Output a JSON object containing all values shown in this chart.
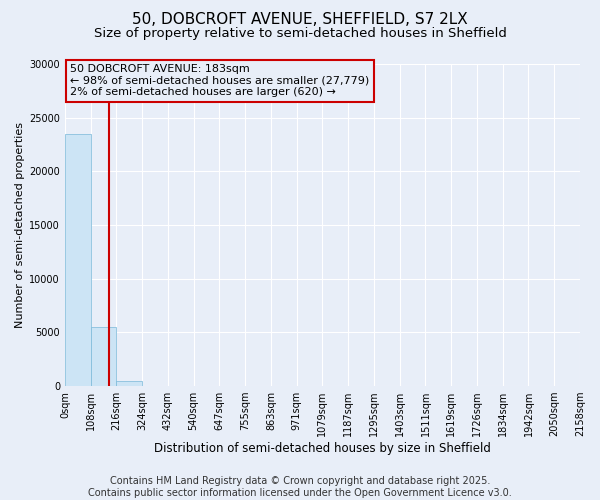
{
  "title_line1": "50, DOBCROFT AVENUE, SHEFFIELD, S7 2LX",
  "title_line2": "Size of property relative to semi-detached houses in Sheffield",
  "xlabel": "Distribution of semi-detached houses by size in Sheffield",
  "ylabel": "Number of semi-detached properties",
  "annotation_title": "50 DOBCROFT AVENUE: 183sqm",
  "annotation_line2": "← 98% of semi-detached houses are smaller (27,779)",
  "annotation_line3": "2% of semi-detached houses are larger (620) →",
  "footer": "Contains HM Land Registry data © Crown copyright and database right 2025.\nContains public sector information licensed under the Open Government Licence v3.0.",
  "bin_labels": [
    "0sqm",
    "108sqm",
    "216sqm",
    "324sqm",
    "432sqm",
    "540sqm",
    "647sqm",
    "755sqm",
    "863sqm",
    "971sqm",
    "1079sqm",
    "1187sqm",
    "1295sqm",
    "1403sqm",
    "1511sqm",
    "1619sqm",
    "1726sqm",
    "1834sqm",
    "1942sqm",
    "2050sqm",
    "2158sqm"
  ],
  "bar_values": [
    23500,
    5500,
    450,
    50,
    10,
    5,
    2,
    1,
    1,
    0,
    0,
    0,
    0,
    0,
    0,
    0,
    0,
    0,
    0,
    0
  ],
  "bar_color": "#cce4f5",
  "bar_edge_color": "#7ab8d9",
  "vline_x": 1.7,
  "vline_color": "#cc0000",
  "annotation_box_color": "#cc0000",
  "ylim": [
    0,
    30000
  ],
  "yticks": [
    0,
    5000,
    10000,
    15000,
    20000,
    25000,
    30000
  ],
  "background_color": "#e8eef8",
  "grid_color": "#ffffff",
  "title_fontsize": 11,
  "subtitle_fontsize": 9.5,
  "tick_fontsize": 7,
  "footer_fontsize": 7,
  "annot_fontsize": 8
}
